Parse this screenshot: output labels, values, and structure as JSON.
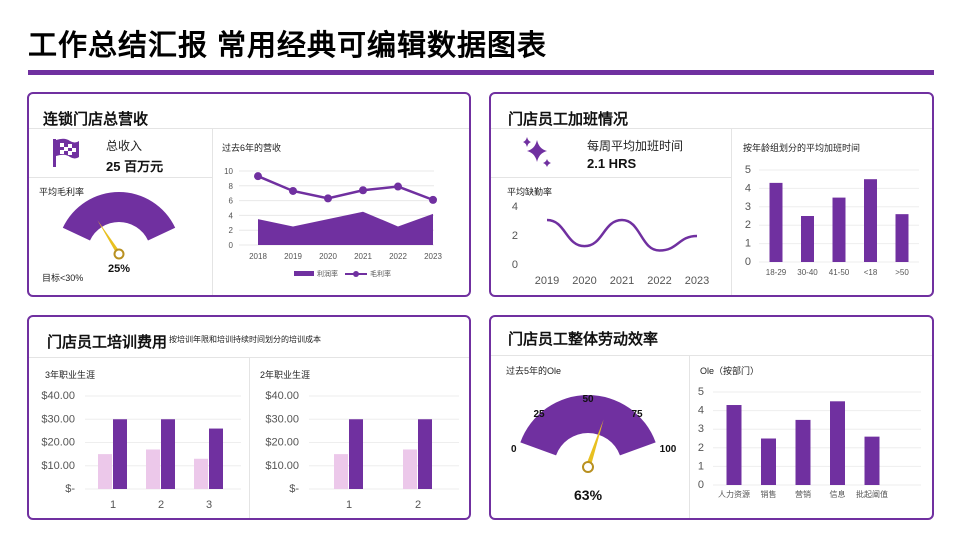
{
  "page_title": "工作总结汇报 常用经典可编辑数据图表",
  "colors": {
    "accent": "#7030a0",
    "light": "#ecc8ea",
    "gold": "#e8c020",
    "needle": "#b89020"
  },
  "p1": {
    "title": "连锁门店总营收",
    "icon": "checkered-flag-icon",
    "kpi_label": "总收入",
    "kpi_value": "25 百万元",
    "gauge_label": "平均毛利率",
    "gauge_value": "25%",
    "gauge_fraction": 0.25,
    "target": "目标<30%",
    "chart_title": "过去6年的营收"
  },
  "p2": {
    "title": "门店员工加班情况",
    "icon": "sparkles-icon",
    "kpi_label": "每周平均加班时间",
    "kpi_value": "2.1 HRS",
    "line_title": "平均缺勤率",
    "bar_title": "按年龄组划分的平均加班时间"
  },
  "p3": {
    "title": "门店员工培训费用",
    "subtitle": "按培训年限和培训持续时间划分的培训成本",
    "left_title": "3年职业生涯",
    "right_title": "2年职业生涯"
  },
  "p4": {
    "title": "门店员工整体劳动效率",
    "gauge_title": "过去5年的Ole",
    "gauge_value": "63%",
    "gauge_fraction": 0.63,
    "gauge_ticks": [
      "0",
      "25",
      "50",
      "75",
      "100"
    ],
    "bar_title": "Ole（按部门）"
  },
  "chart_data": [
    {
      "id": "revenue-6yr",
      "type": "area+line",
      "x": [
        "2018",
        "2019",
        "2020",
        "2021",
        "2022",
        "2023"
      ],
      "series": [
        {
          "name": "利润率",
          "kind": "area",
          "values": [
            3.5,
            2.5,
            3.5,
            4.5,
            2.5,
            4.2
          ]
        },
        {
          "name": "毛利率",
          "kind": "line",
          "values": [
            9.3,
            7.3,
            6.3,
            7.4,
            7.9,
            6.1
          ]
        }
      ],
      "yticks": [
        "0",
        "2",
        "4",
        "6",
        "8",
        "10"
      ],
      "ylim": [
        0,
        10
      ],
      "legend": "bottom"
    },
    {
      "id": "absence-line",
      "type": "line",
      "x": [
        "2019",
        "2020",
        "2021",
        "2022",
        "2023"
      ],
      "values": [
        3.1,
        1.3,
        3.1,
        1.0,
        2.0
      ],
      "yticks": [
        "0",
        "2",
        "4"
      ],
      "ylim": [
        0,
        4
      ]
    },
    {
      "id": "overtime-by-age",
      "type": "bar",
      "categories": [
        "18-29",
        "30-40",
        "41-50",
        "<18",
        ">50"
      ],
      "values": [
        4.3,
        2.5,
        3.5,
        4.5,
        2.6
      ],
      "yticks": [
        "0",
        "1",
        "2",
        "3",
        "4",
        "5"
      ],
      "ylim": [
        0,
        5
      ]
    },
    {
      "id": "training-3yr",
      "type": "bar",
      "categories": [
        "1",
        "2",
        "3"
      ],
      "series": [
        {
          "values": [
            15,
            17,
            13
          ]
        },
        {
          "values": [
            30,
            30,
            26
          ]
        }
      ],
      "yticks": [
        "$-",
        "$10.00",
        "$20.00",
        "$30.00",
        "$40.00"
      ],
      "ylim": [
        0,
        40
      ]
    },
    {
      "id": "training-2yr",
      "type": "bar",
      "categories": [
        "1",
        "2"
      ],
      "series": [
        {
          "values": [
            15,
            17
          ]
        },
        {
          "values": [
            30,
            30
          ]
        }
      ],
      "yticks": [
        "$-",
        "$10.00",
        "$20.00",
        "$30.00",
        "$40.00"
      ],
      "ylim": [
        0,
        40
      ]
    },
    {
      "id": "ole-by-dept",
      "type": "bar",
      "categories": [
        "人力资源",
        "销售",
        "营销",
        "信息",
        "批起阐值"
      ],
      "values": [
        4.3,
        2.5,
        3.5,
        4.5,
        2.6
      ],
      "yticks": [
        "0",
        "1",
        "2",
        "3",
        "4",
        "5"
      ],
      "ylim": [
        0,
        5
      ]
    }
  ]
}
